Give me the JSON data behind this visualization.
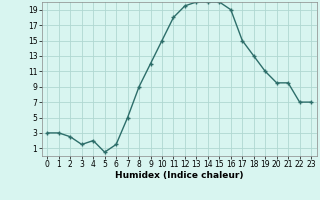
{
  "x": [
    0,
    1,
    2,
    3,
    4,
    5,
    6,
    7,
    8,
    9,
    10,
    11,
    12,
    13,
    14,
    15,
    16,
    17,
    18,
    19,
    20,
    21,
    22,
    23
  ],
  "y": [
    3,
    3,
    2.5,
    1.5,
    2,
    0.5,
    1.5,
    5,
    9,
    12,
    15,
    18,
    19.5,
    20,
    20,
    20,
    19,
    15,
    13,
    11,
    9.5,
    9.5,
    7,
    7
  ],
  "line_color": "#2d6e6a",
  "marker": "+",
  "bg_color": "#d8f5f0",
  "grid_color": "#b0d8d2",
  "xlabel": "Humidex (Indice chaleur)",
  "xlim": [
    -0.5,
    23.5
  ],
  "ylim": [
    0,
    20
  ],
  "yticks": [
    1,
    3,
    5,
    7,
    9,
    11,
    13,
    15,
    17,
    19
  ],
  "xticks": [
    0,
    1,
    2,
    3,
    4,
    5,
    6,
    7,
    8,
    9,
    10,
    11,
    12,
    13,
    14,
    15,
    16,
    17,
    18,
    19,
    20,
    21,
    22,
    23
  ],
  "tick_fontsize": 5.5,
  "xlabel_fontsize": 6.5
}
